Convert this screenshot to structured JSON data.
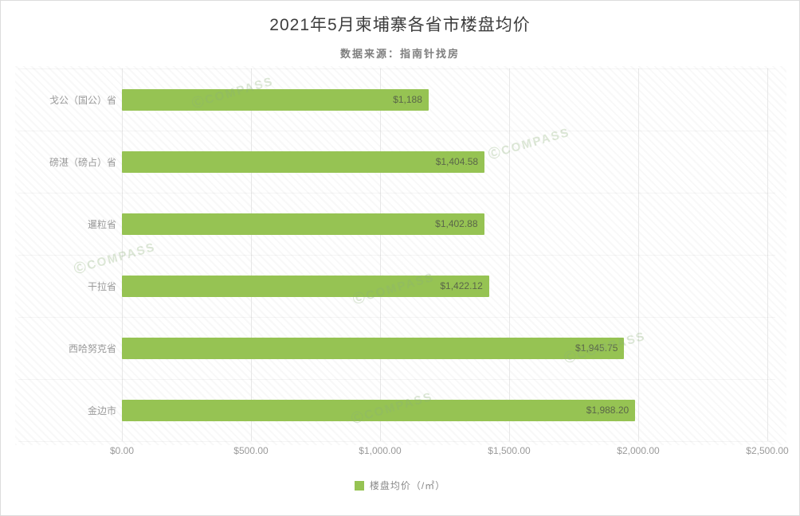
{
  "title": "2021年5月柬埔寨各省市楼盘均价",
  "subtitle": "数据来源：指南针找房",
  "watermark_text": "ⒸCOMPASS",
  "colors": {
    "bar": "#96c353",
    "bar_value_text": "#5a6649",
    "axis_text": "#9a9a9a",
    "title_text": "#3d3d3d",
    "grid": "#e7e7e7"
  },
  "legend": {
    "label": "楼盘均价（/㎡）",
    "swatch_color": "#96c353"
  },
  "chart_data": {
    "type": "bar",
    "orientation": "horizontal",
    "title": "2021年5月柬埔寨各省市楼盘均价",
    "subtitle": "数据来源：指南针找房",
    "categories": [
      "戈公（国公）省",
      "磅湛（磅占）省",
      "暹粒省",
      "干拉省",
      "西哈努克省",
      "金边市"
    ],
    "values": [
      1188,
      1404.58,
      1402.88,
      1422.12,
      1945.75,
      1988.2
    ],
    "value_labels": [
      "$1,188",
      "$1,404.58",
      "$1,402.88",
      "$1,422.12",
      "$1,945.75",
      "$1,988.20"
    ],
    "x_ticks": [
      "$0.00",
      "$500.00",
      "$1,000.00",
      "$1,500.00",
      "$2,000.00",
      "$2,500.00"
    ],
    "xlim": [
      0,
      2500
    ],
    "xlabel": "",
    "ylabel": "",
    "grid": true,
    "legend_entries": [
      "楼盘均价（/㎡）"
    ],
    "legend_position": "bottom"
  }
}
